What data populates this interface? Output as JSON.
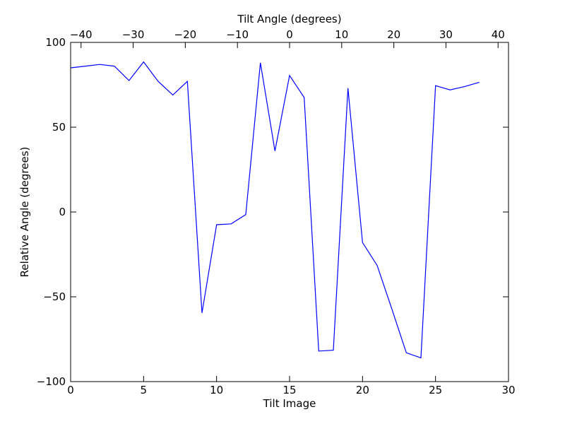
{
  "chart_data": {
    "type": "line",
    "title": "",
    "xlabel": "Tilt Image",
    "ylabel": "Relative Angle (degrees)",
    "top_xlabel": "Tilt Angle (degrees)",
    "xlim": [
      0,
      30
    ],
    "ylim": [
      -100,
      100
    ],
    "top_xlim": [
      -42,
      42
    ],
    "x_ticks": [
      0,
      5,
      10,
      15,
      20,
      25,
      30
    ],
    "y_ticks": [
      -100,
      -50,
      0,
      50,
      100
    ],
    "top_x_ticks": [
      -40,
      -30,
      -20,
      -10,
      0,
      10,
      20,
      30,
      40
    ],
    "x_tick_labels": [
      "0",
      "5",
      "10",
      "15",
      "20",
      "25",
      "30"
    ],
    "y_tick_labels": [
      "−100",
      "−50",
      "0",
      "50",
      "100"
    ],
    "top_x_tick_labels": [
      "−40",
      "−30",
      "−20",
      "−10",
      "0",
      "10",
      "20",
      "30",
      "40"
    ],
    "grid": false,
    "line_color": "#0000ff",
    "series": [
      {
        "x": [
          0,
          1,
          2,
          3,
          4,
          5,
          6,
          7,
          8,
          9,
          10,
          11,
          12,
          13,
          14,
          15,
          16,
          17,
          18,
          19,
          20,
          21,
          22,
          23,
          24,
          25,
          26,
          27,
          28
        ],
        "values": [
          85,
          86,
          87,
          86,
          77.5,
          88.5,
          77,
          69,
          77,
          -59.5,
          -7.5,
          -7,
          -1.5,
          88,
          36,
          80.5,
          67.5,
          -82,
          -81.5,
          73,
          -18,
          -31.5,
          -57,
          -83,
          -86,
          74.5,
          72,
          74,
          76.5
        ]
      }
    ]
  }
}
